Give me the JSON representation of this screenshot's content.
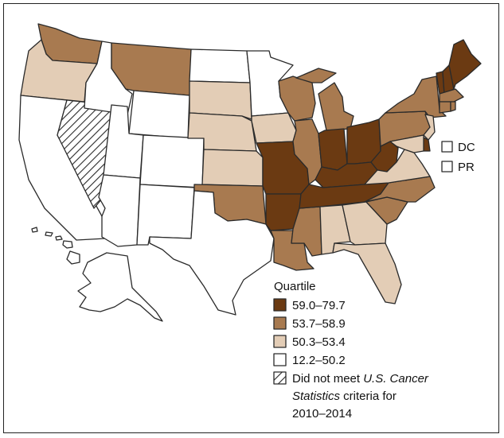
{
  "colors": {
    "q1": "#6b3a12",
    "q2": "#a87a50",
    "q3": "#e3cdb6",
    "q4": "#ffffff",
    "outline": "#2a2a2a"
  },
  "legend": {
    "title": "Quartile",
    "items": [
      {
        "label": "59.0–79.7",
        "color": "#6b3a12"
      },
      {
        "label": "53.7–58.9",
        "color": "#a87a50"
      },
      {
        "label": "50.3–53.4",
        "color": "#e3cdb6"
      },
      {
        "label": "12.2–50.2",
        "color": "#ffffff"
      }
    ],
    "hatched": {
      "line1_prefix": "Did not meet ",
      "line1_italic": "U.S. Cancer",
      "line2_italic": "Statistics",
      "line2_suffix": " criteria for",
      "line3": "2010–2014"
    }
  },
  "inset_boxes": [
    {
      "label": "DC",
      "quartile": "q4"
    },
    {
      "label": "PR",
      "quartile": "q4"
    }
  ],
  "states": {
    "WA": "q2",
    "OR": "q3",
    "CA": "q4",
    "NV": "hatch",
    "ID": "q4",
    "MT": "q2",
    "WY": "q4",
    "UT": "q4",
    "AZ": "q4",
    "CO": "q4",
    "NM": "q4",
    "ND": "q4",
    "SD": "q3",
    "NE": "q3",
    "KS": "q3",
    "OK": "q2",
    "TX": "q4",
    "MN": "q4",
    "IA": "q3",
    "MO": "q1",
    "AR": "q1",
    "LA": "q2",
    "WI": "q2",
    "IL": "q2",
    "MS": "q2",
    "AL": "q3",
    "MI": "q2",
    "IN": "q1",
    "KY": "q1",
    "TN": "q1",
    "OH": "q1",
    "WV": "q1",
    "GA": "q3",
    "FL": "q3",
    "SC": "q2",
    "NC": "q2",
    "VA": "q3",
    "PA": "q2",
    "NY": "q2",
    "ME": "q1",
    "VT": "q1",
    "NH": "q1",
    "MA": "q2",
    "CT": "q2",
    "RI": "q2",
    "NJ": "q3",
    "DE": "q1",
    "MD": "q3",
    "AK": "q4",
    "HI": "q4"
  }
}
